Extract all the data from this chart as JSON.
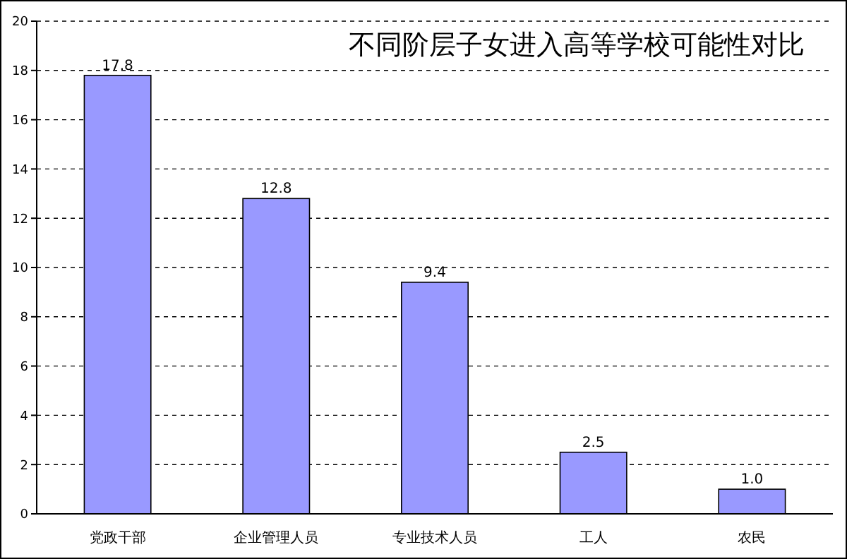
{
  "chart_data": {
    "type": "bar",
    "title": "不同阶层子女进入高等学校可能性对比",
    "categories": [
      "党政干部",
      "企业管理人员",
      "专业技术人员",
      "工人",
      "农民"
    ],
    "values": [
      17.8,
      12.8,
      9.4,
      2.5,
      1.0
    ],
    "value_labels": [
      "17.8",
      "12.8",
      "9.4",
      "2.5",
      "1.0"
    ],
    "color": "#9999ff",
    "ylim": [
      0,
      20
    ],
    "yticks": [
      0,
      2,
      4,
      6,
      8,
      10,
      12,
      14,
      16,
      18,
      20
    ],
    "grid": "y"
  }
}
